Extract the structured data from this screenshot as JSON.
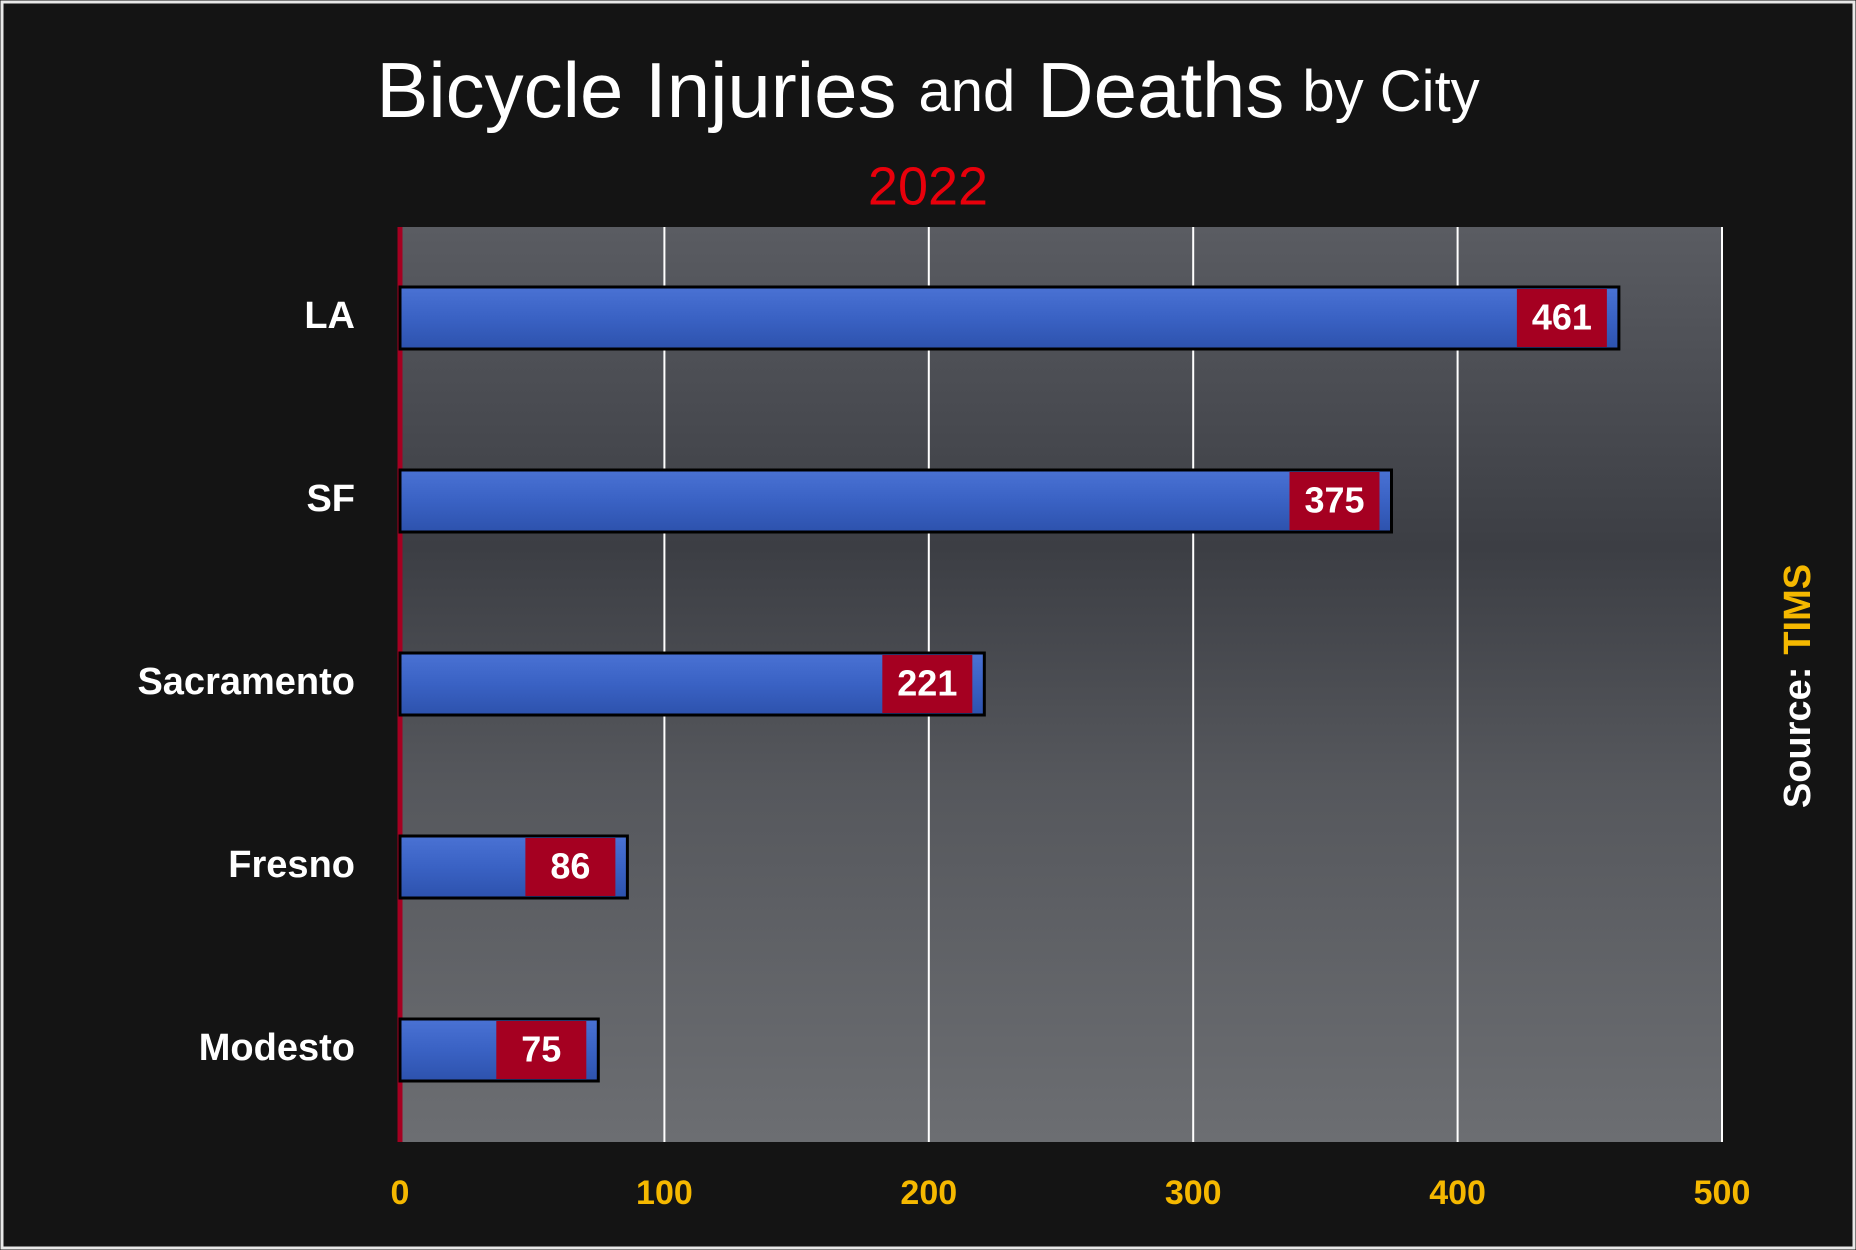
{
  "chart_data": {
    "type": "bar",
    "orientation": "horizontal",
    "title": [
      "Bicycle Injuries",
      "and",
      "Deaths",
      "by City"
    ],
    "subtitle": "2022",
    "source_label": "Source:",
    "source": "TIMS",
    "categories": [
      "LA",
      "SF",
      "Sacramento",
      "Fresno",
      "Modesto"
    ],
    "values": [
      461,
      375,
      221,
      86,
      75
    ],
    "color": "#3a62c4",
    "label_color": "#a50021",
    "xlim": [
      0,
      500
    ],
    "xticks": [
      0,
      100,
      200,
      300,
      400,
      500
    ],
    "grid": true
  }
}
